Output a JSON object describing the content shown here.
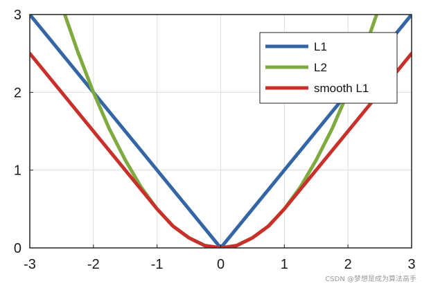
{
  "chart_data": {
    "type": "line",
    "title": "",
    "xlabel": "",
    "ylabel": "",
    "xlim": [
      -3,
      3
    ],
    "ylim": [
      0,
      3
    ],
    "x_ticks": [
      "-3",
      "-2",
      "-1",
      "0",
      "1",
      "2",
      "3"
    ],
    "y_ticks": [
      "0",
      "1",
      "2",
      "3"
    ],
    "grid": true,
    "legend_position": "top-right",
    "series": [
      {
        "name": "L1",
        "color": "#3465a4",
        "x": [
          -3,
          -2,
          -1,
          0,
          1,
          2,
          3
        ],
        "y": [
          3,
          2,
          1,
          0,
          1,
          2,
          3
        ]
      },
      {
        "name": "L2",
        "color": "#7faa3f",
        "x": [
          -2.45,
          -2.25,
          -2,
          -1.75,
          -1.5,
          -1.25,
          -1,
          -0.75,
          -0.5,
          -0.25,
          0,
          0.25,
          0.5,
          0.75,
          1,
          1.25,
          1.5,
          1.75,
          2,
          2.25,
          2.45
        ],
        "y": [
          3.0,
          2.53,
          2.0,
          1.53,
          1.13,
          0.78,
          0.5,
          0.28,
          0.13,
          0.03,
          0.0,
          0.03,
          0.13,
          0.28,
          0.5,
          0.78,
          1.13,
          1.53,
          2.0,
          2.53,
          3.0
        ]
      },
      {
        "name": "smooth L1",
        "color": "#c8312b",
        "x": [
          -3,
          -2,
          -1,
          -0.75,
          -0.5,
          -0.25,
          0,
          0.25,
          0.5,
          0.75,
          1,
          2,
          3
        ],
        "y": [
          2.5,
          1.5,
          0.5,
          0.28,
          0.13,
          0.03,
          0.0,
          0.03,
          0.13,
          0.28,
          0.5,
          1.5,
          2.5
        ]
      }
    ]
  },
  "watermark": "CSDN @梦想是成为算法高手"
}
